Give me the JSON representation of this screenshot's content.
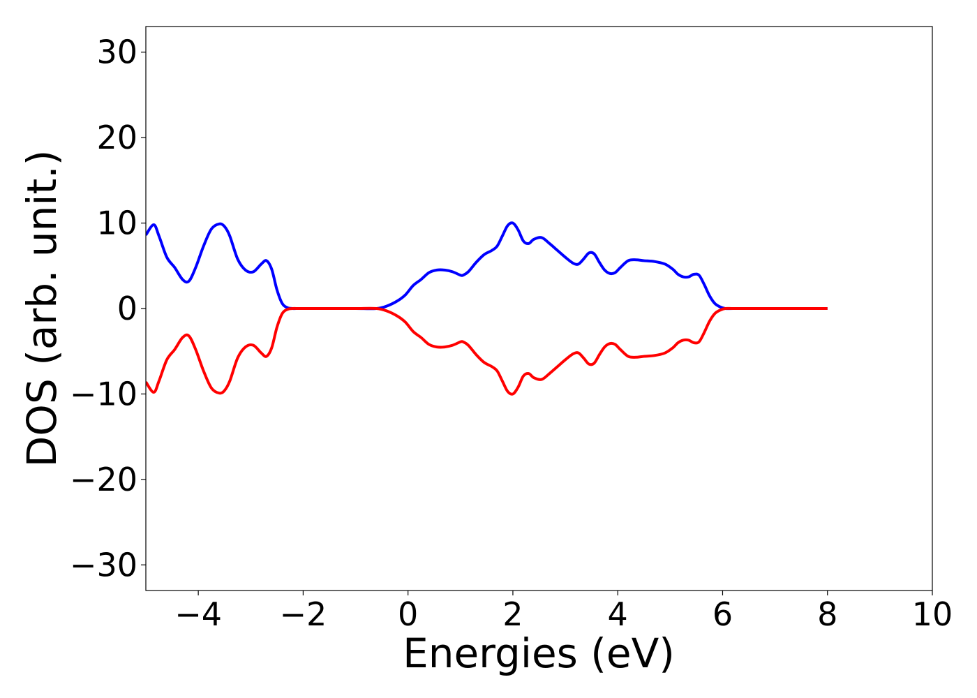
{
  "chart_data": {
    "type": "line",
    "title": "",
    "xlabel": "Energies (eV)",
    "ylabel": "DOS (arb. unit.)",
    "xlim": [
      -5,
      10
    ],
    "ylim": [
      -33,
      33
    ],
    "xticks": [
      -4,
      -2,
      0,
      2,
      4,
      6,
      8,
      10
    ],
    "yticks": [
      -30,
      -20,
      -10,
      0,
      10,
      20,
      30
    ],
    "xtick_labels": [
      "−4",
      "−2",
      "0",
      "2",
      "4",
      "6",
      "8",
      "10"
    ],
    "ytick_labels": [
      "−30",
      "−20",
      "−10",
      "0",
      "10",
      "20",
      "30"
    ],
    "grid": false,
    "legend": "none",
    "series": [
      {
        "color": "#0000ff",
        "x": [
          -5.0,
          -4.85,
          -4.75,
          -4.6,
          -4.45,
          -4.3,
          -4.18,
          -4.05,
          -3.9,
          -3.75,
          -3.6,
          -3.5,
          -3.4,
          -3.25,
          -3.1,
          -2.95,
          -2.8,
          -2.7,
          -2.6,
          -2.5,
          -2.4,
          -2.3,
          -2.2,
          -2.1,
          -2.0,
          -1.8,
          -1.5,
          -1.0,
          -0.6,
          -0.4,
          -0.2,
          -0.05,
          0.1,
          0.25,
          0.4,
          0.55,
          0.7,
          0.85,
          1.0,
          1.05,
          1.15,
          1.3,
          1.45,
          1.6,
          1.7,
          1.8,
          1.9,
          2.0,
          2.1,
          2.2,
          2.3,
          2.4,
          2.55,
          2.7,
          2.85,
          3.0,
          3.15,
          3.25,
          3.35,
          3.45,
          3.55,
          3.65,
          3.75,
          3.85,
          3.95,
          4.05,
          4.2,
          4.35,
          4.5,
          4.7,
          4.9,
          5.05,
          5.15,
          5.25,
          5.35,
          5.45,
          5.55,
          5.65,
          5.75,
          5.85,
          5.95,
          6.05,
          6.2,
          6.5,
          7.0,
          7.5,
          8.0
        ],
        "y": [
          8.6,
          9.8,
          8.5,
          6.0,
          4.8,
          3.4,
          3.2,
          4.8,
          7.3,
          9.3,
          9.9,
          9.6,
          8.5,
          5.8,
          4.5,
          4.3,
          5.2,
          5.6,
          4.6,
          2.2,
          0.6,
          0.1,
          0.0,
          0.0,
          0.0,
          0.0,
          0.0,
          0.0,
          0.0,
          0.3,
          0.9,
          1.6,
          2.7,
          3.4,
          4.2,
          4.5,
          4.5,
          4.3,
          3.9,
          3.9,
          4.3,
          5.4,
          6.3,
          6.8,
          7.3,
          8.5,
          9.7,
          10.0,
          9.2,
          7.9,
          7.6,
          8.1,
          8.3,
          7.6,
          6.8,
          6.0,
          5.3,
          5.2,
          5.8,
          6.5,
          6.4,
          5.4,
          4.5,
          4.1,
          4.2,
          4.8,
          5.6,
          5.7,
          5.6,
          5.5,
          5.2,
          4.6,
          4.0,
          3.7,
          3.7,
          4.0,
          3.9,
          2.8,
          1.5,
          0.6,
          0.2,
          0.0,
          0.0,
          0.0,
          0.0,
          0.0,
          0.0
        ]
      },
      {
        "color": "#ff0000",
        "x": [
          -5.0,
          -4.85,
          -4.75,
          -4.6,
          -4.45,
          -4.3,
          -4.18,
          -4.05,
          -3.9,
          -3.75,
          -3.6,
          -3.5,
          -3.4,
          -3.25,
          -3.1,
          -2.95,
          -2.8,
          -2.7,
          -2.6,
          -2.5,
          -2.4,
          -2.3,
          -2.2,
          -2.1,
          -2.0,
          -1.8,
          -1.5,
          -1.0,
          -0.6,
          -0.4,
          -0.2,
          -0.05,
          0.1,
          0.25,
          0.4,
          0.55,
          0.7,
          0.85,
          1.0,
          1.05,
          1.15,
          1.3,
          1.45,
          1.6,
          1.7,
          1.8,
          1.9,
          2.0,
          2.1,
          2.2,
          2.3,
          2.4,
          2.55,
          2.7,
          2.85,
          3.0,
          3.15,
          3.25,
          3.35,
          3.45,
          3.55,
          3.65,
          3.75,
          3.85,
          3.95,
          4.05,
          4.2,
          4.35,
          4.5,
          4.7,
          4.9,
          5.05,
          5.15,
          5.25,
          5.35,
          5.45,
          5.55,
          5.65,
          5.75,
          5.85,
          5.95,
          6.05,
          6.2,
          6.5,
          7.0,
          7.5,
          8.0
        ],
        "y": [
          -8.6,
          -9.8,
          -8.5,
          -6.0,
          -4.8,
          -3.4,
          -3.2,
          -4.8,
          -7.3,
          -9.3,
          -9.9,
          -9.6,
          -8.5,
          -5.8,
          -4.5,
          -4.3,
          -5.2,
          -5.6,
          -4.6,
          -2.2,
          -0.6,
          -0.1,
          0.0,
          0.0,
          0.0,
          0.0,
          0.0,
          0.0,
          0.0,
          -0.3,
          -0.9,
          -1.6,
          -2.7,
          -3.4,
          -4.2,
          -4.5,
          -4.5,
          -4.3,
          -3.9,
          -3.9,
          -4.3,
          -5.4,
          -6.3,
          -6.8,
          -7.3,
          -8.5,
          -9.7,
          -10.0,
          -9.2,
          -7.9,
          -7.6,
          -8.1,
          -8.3,
          -7.6,
          -6.8,
          -6.0,
          -5.3,
          -5.2,
          -5.8,
          -6.5,
          -6.4,
          -5.4,
          -4.5,
          -4.1,
          -4.2,
          -4.8,
          -5.6,
          -5.7,
          -5.6,
          -5.5,
          -5.2,
          -4.6,
          -4.0,
          -3.7,
          -3.7,
          -4.0,
          -3.9,
          -2.8,
          -1.5,
          -0.6,
          -0.2,
          0.0,
          0.0,
          0.0,
          0.0,
          0.0,
          0.0
        ]
      }
    ]
  }
}
